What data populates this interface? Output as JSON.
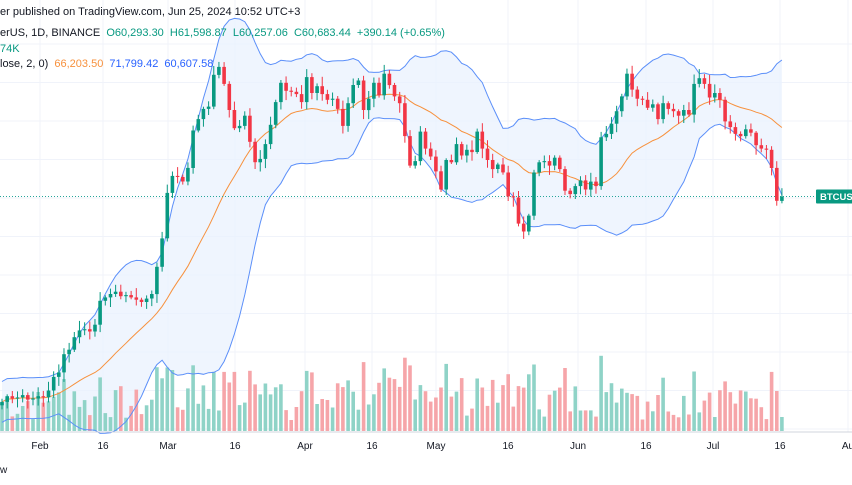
{
  "header": {
    "publisher": "er published on TradingView.com, Jun 25, 2024 10:52 UTC+3",
    "symbol_line": "erUS, 1D, BINANCE",
    "open": "O60,293.30",
    "high": "H61,598.87",
    "low": "L60,257.06",
    "close": "C60,683.44",
    "change": "+390.14 (+0.65%)",
    "volume_fragment": "74K",
    "indicator_name": "lose, 2, 0)",
    "bb_basis": "66,203.50",
    "bb_upper": "71,799.42",
    "bb_lower": "60,607.58"
  },
  "footer": {
    "brand_fragment": "w"
  },
  "colors": {
    "up": "#089981",
    "down": "#f23645",
    "basis": "#f7913d",
    "bands": "#5b8ff9",
    "band_fill": "#eaf2fd",
    "price_line": "#26a69a",
    "vol_up": "#8fd3c7",
    "vol_down": "#f6a5a9"
  },
  "price_tag": "BTCUSD",
  "chart_data": {
    "type": "candlestick",
    "x_axis_ticks": [
      "Feb",
      "16",
      "Mar",
      "16",
      "Apr",
      "16",
      "May",
      "16",
      "Jun",
      "16",
      "Jul",
      "16",
      "Au"
    ],
    "current_price": 60683.44,
    "bollinger": {
      "length": 20,
      "mult": 2,
      "basis": 66203.5,
      "upper": 71799.42,
      "lower": 60607.58
    },
    "ylim": [
      32000,
      75000
    ],
    "closes": [
      42600,
      43100,
      42900,
      43000,
      43200,
      42800,
      42900,
      43100,
      43000,
      43600,
      44800,
      45200,
      46800,
      47200,
      48300,
      48900,
      49000,
      48800,
      49400,
      51500,
      51800,
      52100,
      52300,
      51900,
      52000,
      51800,
      51600,
      51400,
      51700,
      52100,
      54500,
      57000,
      61000,
      62500,
      62400,
      62000,
      63200,
      66500,
      67500,
      68400,
      68600,
      71400,
      72100,
      70600,
      68300,
      66700,
      66900,
      67800,
      65500,
      63700,
      64000,
      65300,
      67000,
      69000,
      70700,
      70000,
      69900,
      69700,
      69000,
      71200,
      69800,
      70400,
      69700,
      69200,
      69300,
      68400,
      66900,
      68900,
      70500,
      70900,
      68300,
      69300,
      70700,
      69600,
      71500,
      70500,
      69500,
      68900,
      66000,
      63400,
      63800,
      66400,
      64900,
      64200,
      62900,
      61300,
      63900,
      63700,
      65300,
      64300,
      64800,
      64600,
      66400,
      64900,
      63900,
      63100,
      63500,
      62800,
      60700,
      60600,
      58300,
      57600,
      59000,
      62800,
      63700,
      63800,
      63400,
      64100,
      63100,
      61200,
      60900,
      61600,
      62100,
      61300,
      62000,
      61600,
      65900,
      66200,
      67100,
      68200,
      69500,
      71500,
      70100,
      69300,
      69200,
      68500,
      68800,
      67500,
      68900,
      68400,
      68200,
      67800,
      68300,
      67900,
      70600,
      71100,
      70600,
      69400,
      69800,
      69200,
      67300,
      66800,
      66200,
      66000,
      66600,
      66300,
      65200,
      64900,
      64800,
      63200,
      60300,
      60680
    ]
  }
}
